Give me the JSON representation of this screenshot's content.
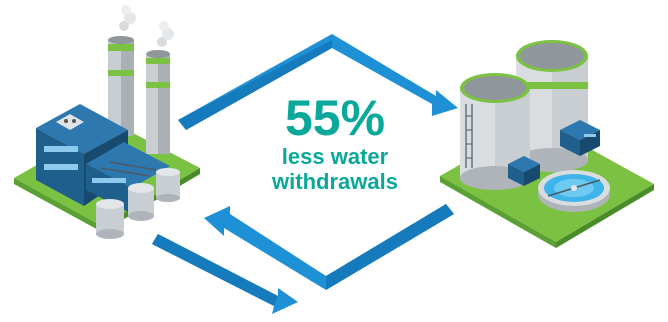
{
  "headline": {
    "value": "55%",
    "line1": "less water",
    "line2": "withdrawals"
  },
  "icons": {
    "left": "power-plant-icon",
    "right": "water-treatment-plant-icon",
    "flow": "circular-arrows-icon"
  },
  "colors": {
    "accent_teal": "#0aa89b",
    "arrow_blue": "#1e90d6",
    "grass_green": "#7cc242",
    "building_blue": "#1f5f8b",
    "tank_gray": "#c9ced3"
  }
}
